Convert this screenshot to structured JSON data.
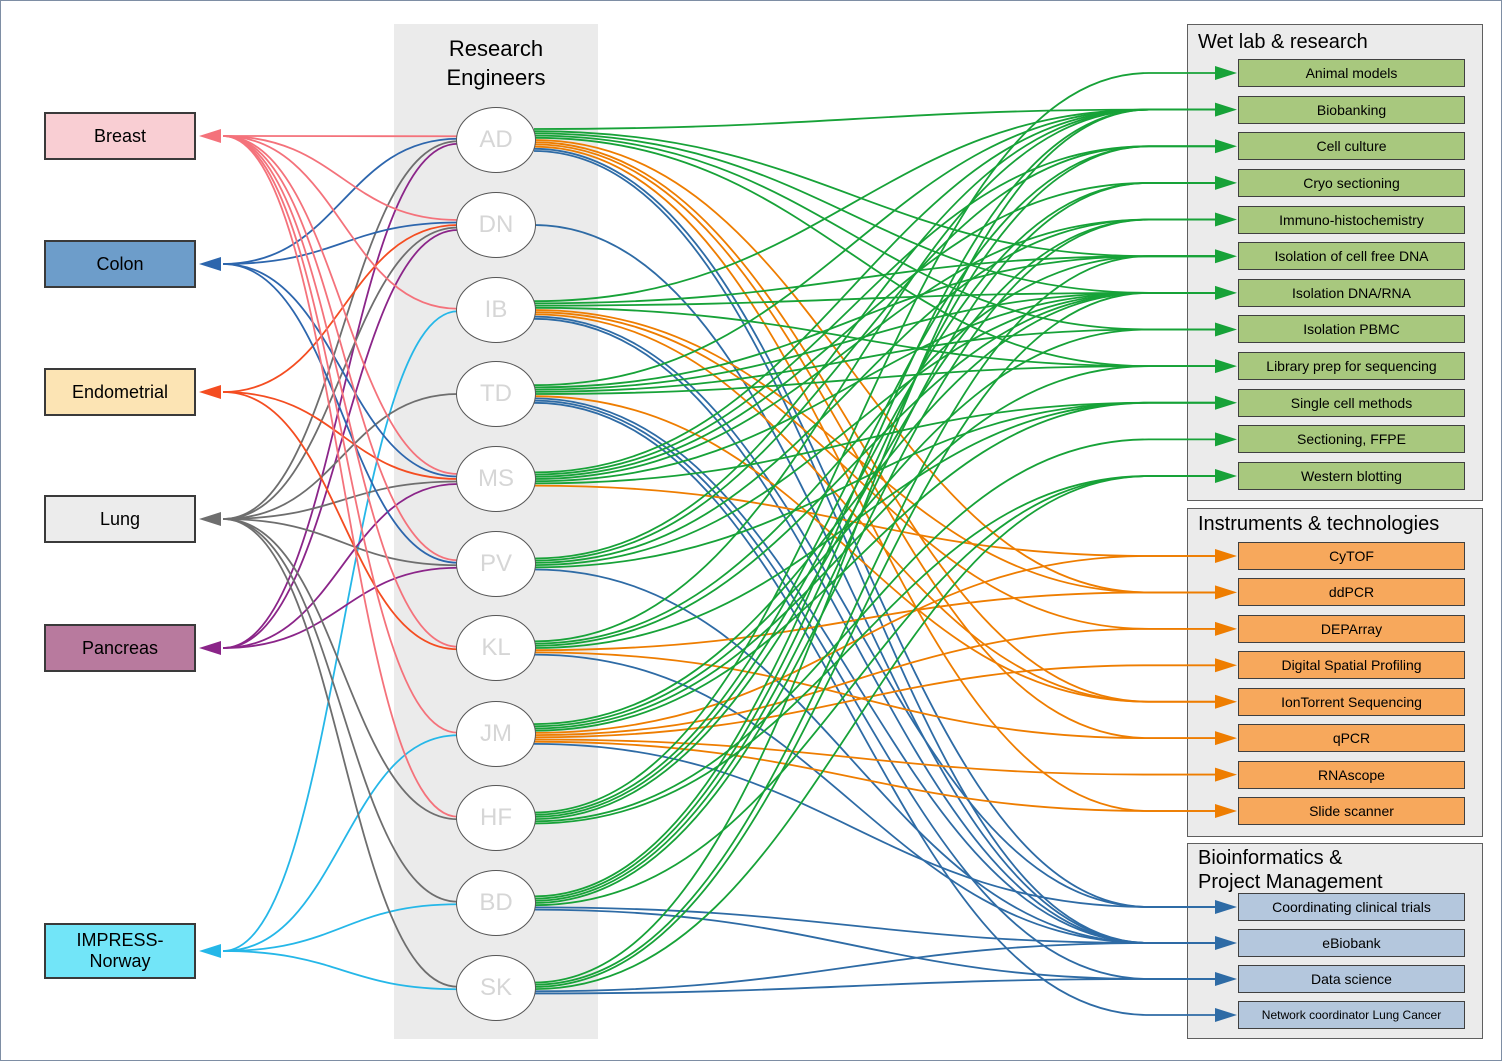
{
  "middle_column": {
    "title": "Research\nEngineers"
  },
  "left_nodes": [
    {
      "id": "breast",
      "label": "Breast",
      "fill": "#f9ced3",
      "edge_color": "#f4727b"
    },
    {
      "id": "colon",
      "label": "Colon",
      "fill": "#6d9dca",
      "edge_color": "#2d66ad"
    },
    {
      "id": "endometrial",
      "label": "Endometrial",
      "fill": "#fce4b4",
      "edge_color": "#f44d21"
    },
    {
      "id": "lung",
      "label": "Lung",
      "fill": "#ececec",
      "edge_color": "#6e6e6e"
    },
    {
      "id": "pancreas",
      "label": "Pancreas",
      "fill": "#b87a9e",
      "edge_color": "#8b2589"
    },
    {
      "id": "impress",
      "label": "IMPRESS-\nNorway",
      "fill": "#72e5f8",
      "edge_color": "#25b7e8"
    }
  ],
  "engineers": [
    {
      "id": "AD",
      "label": "AD"
    },
    {
      "id": "DN",
      "label": "DN"
    },
    {
      "id": "IB",
      "label": "IB"
    },
    {
      "id": "TD",
      "label": "TD"
    },
    {
      "id": "MS",
      "label": "MS"
    },
    {
      "id": "PV",
      "label": "PV"
    },
    {
      "id": "KL",
      "label": "KL"
    },
    {
      "id": "JM",
      "label": "JM"
    },
    {
      "id": "HF",
      "label": "HF"
    },
    {
      "id": "BD",
      "label": "BD"
    },
    {
      "id": "SK",
      "label": "SK"
    }
  ],
  "sections": [
    {
      "id": "wetlab",
      "title": "Wet lab & research",
      "item_fill": "#a8c87e",
      "edge_color": "#17a238",
      "items": [
        {
          "id": "animal-models",
          "label": "Animal models"
        },
        {
          "id": "biobanking",
          "label": "Biobanking"
        },
        {
          "id": "cell-culture",
          "label": "Cell culture"
        },
        {
          "id": "cryo-sectioning",
          "label": "Cryo sectioning"
        },
        {
          "id": "immuno-histochemistry",
          "label": "Immuno-histochemistry"
        },
        {
          "id": "isolation-cfdna",
          "label": "Isolation of cell free DNA"
        },
        {
          "id": "isolation-dna-rna",
          "label": "Isolation DNA/RNA"
        },
        {
          "id": "isolation-pbmc",
          "label": "Isolation PBMC"
        },
        {
          "id": "library-prep",
          "label": "Library prep for sequencing"
        },
        {
          "id": "single-cell",
          "label": "Single cell methods"
        },
        {
          "id": "sectioning-ffpe",
          "label": "Sectioning, FFPE"
        },
        {
          "id": "western-blotting",
          "label": "Western blotting"
        }
      ]
    },
    {
      "id": "instruments",
      "title": "Instruments & technologies",
      "item_fill": "#f7a85c",
      "edge_color": "#ee7d00",
      "items": [
        {
          "id": "cytof",
          "label": "CyTOF"
        },
        {
          "id": "ddpcr",
          "label": "ddPCR"
        },
        {
          "id": "deparray",
          "label": "DEPArray"
        },
        {
          "id": "dsp",
          "label": "Digital Spatial Profiling"
        },
        {
          "id": "iontorrent",
          "label": "IonTorrent Sequencing"
        },
        {
          "id": "qpcr",
          "label": "qPCR"
        },
        {
          "id": "rnascope",
          "label": "RNAscope"
        },
        {
          "id": "slide-scanner",
          "label": "Slide scanner"
        }
      ]
    },
    {
      "id": "bioinfo",
      "title": "Bioinformatics &\nProject Management",
      "item_fill": "#b4c7dd",
      "edge_color": "#2e6ba5",
      "items": [
        {
          "id": "coordinating-trials",
          "label": "Coordinating clinical trials"
        },
        {
          "id": "ebiobank",
          "label": "eBiobank"
        },
        {
          "id": "data-science",
          "label": "Data science"
        },
        {
          "id": "network-coordinator",
          "label": "Network coordinator Lung Cancer",
          "small": true
        }
      ]
    }
  ],
  "edges": {
    "to_cancer_types": [
      [
        "AD",
        "breast"
      ],
      [
        "AD",
        "colon"
      ],
      [
        "AD",
        "lung"
      ],
      [
        "AD",
        "pancreas"
      ],
      [
        "DN",
        "breast"
      ],
      [
        "DN",
        "colon"
      ],
      [
        "DN",
        "endometrial"
      ],
      [
        "DN",
        "lung"
      ],
      [
        "DN",
        "pancreas"
      ],
      [
        "IB",
        "breast"
      ],
      [
        "IB",
        "impress"
      ],
      [
        "TD",
        "lung"
      ],
      [
        "MS",
        "breast"
      ],
      [
        "MS",
        "colon"
      ],
      [
        "MS",
        "endometrial"
      ],
      [
        "MS",
        "lung"
      ],
      [
        "MS",
        "pancreas"
      ],
      [
        "PV",
        "breast"
      ],
      [
        "PV",
        "colon"
      ],
      [
        "PV",
        "lung"
      ],
      [
        "PV",
        "pancreas"
      ],
      [
        "KL",
        "breast"
      ],
      [
        "KL",
        "endometrial"
      ],
      [
        "JM",
        "breast"
      ],
      [
        "JM",
        "impress"
      ],
      [
        "HF",
        "breast"
      ],
      [
        "HF",
        "lung"
      ],
      [
        "BD",
        "lung"
      ],
      [
        "BD",
        "impress"
      ],
      [
        "SK",
        "lung"
      ],
      [
        "SK",
        "impress"
      ]
    ],
    "to_skills": [
      [
        "AD",
        "biobanking"
      ],
      [
        "AD",
        "isolation-cfdna"
      ],
      [
        "AD",
        "isolation-dna-rna"
      ],
      [
        "AD",
        "isolation-pbmc"
      ],
      [
        "AD",
        "library-prep"
      ],
      [
        "AD",
        "ddpcr"
      ],
      [
        "AD",
        "iontorrent"
      ],
      [
        "AD",
        "qpcr"
      ],
      [
        "AD",
        "slide-scanner"
      ],
      [
        "AD",
        "coordinating-trials"
      ],
      [
        "AD",
        "ebiobank"
      ],
      [
        "DN",
        "ebiobank"
      ],
      [
        "IB",
        "biobanking"
      ],
      [
        "IB",
        "isolation-cfdna"
      ],
      [
        "IB",
        "isolation-dna-rna"
      ],
      [
        "IB",
        "library-prep"
      ],
      [
        "IB",
        "ddpcr"
      ],
      [
        "IB",
        "deparray"
      ],
      [
        "IB",
        "iontorrent"
      ],
      [
        "IB",
        "coordinating-trials"
      ],
      [
        "IB",
        "ebiobank"
      ],
      [
        "TD",
        "biobanking"
      ],
      [
        "TD",
        "isolation-cfdna"
      ],
      [
        "TD",
        "isolation-dna-rna"
      ],
      [
        "TD",
        "isolation-pbmc"
      ],
      [
        "TD",
        "library-prep"
      ],
      [
        "TD",
        "iontorrent"
      ],
      [
        "TD",
        "ebiobank"
      ],
      [
        "TD",
        "data-science"
      ],
      [
        "TD",
        "network-coordinator"
      ],
      [
        "MS",
        "biobanking"
      ],
      [
        "MS",
        "cell-culture"
      ],
      [
        "MS",
        "cryo-sectioning"
      ],
      [
        "MS",
        "immuno-histochemistry"
      ],
      [
        "MS",
        "isolation-dna-rna"
      ],
      [
        "MS",
        "single-cell"
      ],
      [
        "MS",
        "cytof"
      ],
      [
        "PV",
        "biobanking"
      ],
      [
        "PV",
        "cell-culture"
      ],
      [
        "PV",
        "immuno-histochemistry"
      ],
      [
        "PV",
        "isolation-dna-rna"
      ],
      [
        "PV",
        "single-cell"
      ],
      [
        "PV",
        "ebiobank"
      ],
      [
        "KL",
        "biobanking"
      ],
      [
        "KL",
        "isolation-cfdna"
      ],
      [
        "KL",
        "isolation-dna-rna"
      ],
      [
        "KL",
        "single-cell"
      ],
      [
        "KL",
        "ddpcr"
      ],
      [
        "KL",
        "qpcr"
      ],
      [
        "KL",
        "ebiobank"
      ],
      [
        "JM",
        "isolation-dna-rna"
      ],
      [
        "JM",
        "isolation-pbmc"
      ],
      [
        "JM",
        "library-prep"
      ],
      [
        "JM",
        "single-cell"
      ],
      [
        "JM",
        "cytof"
      ],
      [
        "JM",
        "deparray"
      ],
      [
        "JM",
        "dsp"
      ],
      [
        "JM",
        "rnascope"
      ],
      [
        "JM",
        "slide-scanner"
      ],
      [
        "JM",
        "coordinating-trials"
      ],
      [
        "HF",
        "animal-models"
      ],
      [
        "HF",
        "cell-culture"
      ],
      [
        "HF",
        "cryo-sectioning"
      ],
      [
        "HF",
        "immuno-histochemistry"
      ],
      [
        "HF",
        "sectioning-ffpe"
      ],
      [
        "HF",
        "western-blotting"
      ],
      [
        "BD",
        "biobanking"
      ],
      [
        "BD",
        "cell-culture"
      ],
      [
        "BD",
        "cryo-sectioning"
      ],
      [
        "BD",
        "immuno-histochemistry"
      ],
      [
        "BD",
        "western-blotting"
      ],
      [
        "BD",
        "ebiobank"
      ],
      [
        "BD",
        "data-science"
      ],
      [
        "SK",
        "biobanking"
      ],
      [
        "SK",
        "isolation-cfdna"
      ],
      [
        "SK",
        "isolation-dna-rna"
      ],
      [
        "SK",
        "western-blotting"
      ],
      [
        "SK",
        "ebiobank"
      ],
      [
        "SK",
        "data-science"
      ]
    ]
  }
}
